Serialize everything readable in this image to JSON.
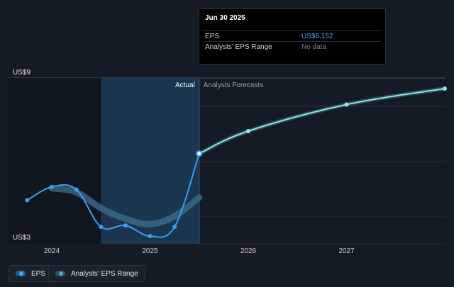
{
  "tooltip": {
    "date": "Jun 30 2025",
    "eps_label": "EPS",
    "eps_value": "US$6.152",
    "range_label": "Analysts' EPS Range",
    "range_value": "No data"
  },
  "sections": {
    "actual": "Actual",
    "forecast": "Analysts Forecasts"
  },
  "legend": {
    "eps": "EPS",
    "range": "Analysts' EPS Range"
  },
  "colors": {
    "background": "#151b24",
    "eps_line": "#3b9ef0",
    "forecast_line": "#8ce6e6",
    "range_band": "#3d6f8e",
    "highlight": "#1b3a56"
  },
  "chart_data": {
    "type": "line",
    "title": "",
    "ylabel": "",
    "xlabel": "",
    "ylim": [
      3,
      9
    ],
    "y_tick_labels": [
      "US$3",
      "US$9"
    ],
    "x_ticks": [
      2024,
      2025,
      2026,
      2027
    ],
    "x_tick_labels": [
      "2024",
      "2025",
      "2026",
      "2027"
    ],
    "grid": true,
    "series": [
      {
        "name": "EPS",
        "kind": "actual",
        "x": [
          2023.75,
          2024.0,
          2024.25,
          2024.5,
          2024.75,
          2025.0,
          2025.25,
          2025.5
        ],
        "y": [
          4.4,
          4.9,
          4.8,
          3.4,
          3.45,
          3.05,
          3.4,
          6.152
        ]
      },
      {
        "name": "Analysts Forecasts",
        "kind": "forecast",
        "x": [
          2025.5,
          2026.0,
          2027.0,
          2028.0
        ],
        "y": [
          6.152,
          7.0,
          8.0,
          8.6
        ]
      },
      {
        "name": "Analysts' EPS Range",
        "kind": "band",
        "x": [
          2024.0,
          2024.25,
          2024.5,
          2024.75,
          2025.0,
          2025.25,
          2025.5
        ],
        "y": [
          4.85,
          4.7,
          4.1,
          3.7,
          3.5,
          3.8,
          4.5
        ]
      }
    ]
  }
}
